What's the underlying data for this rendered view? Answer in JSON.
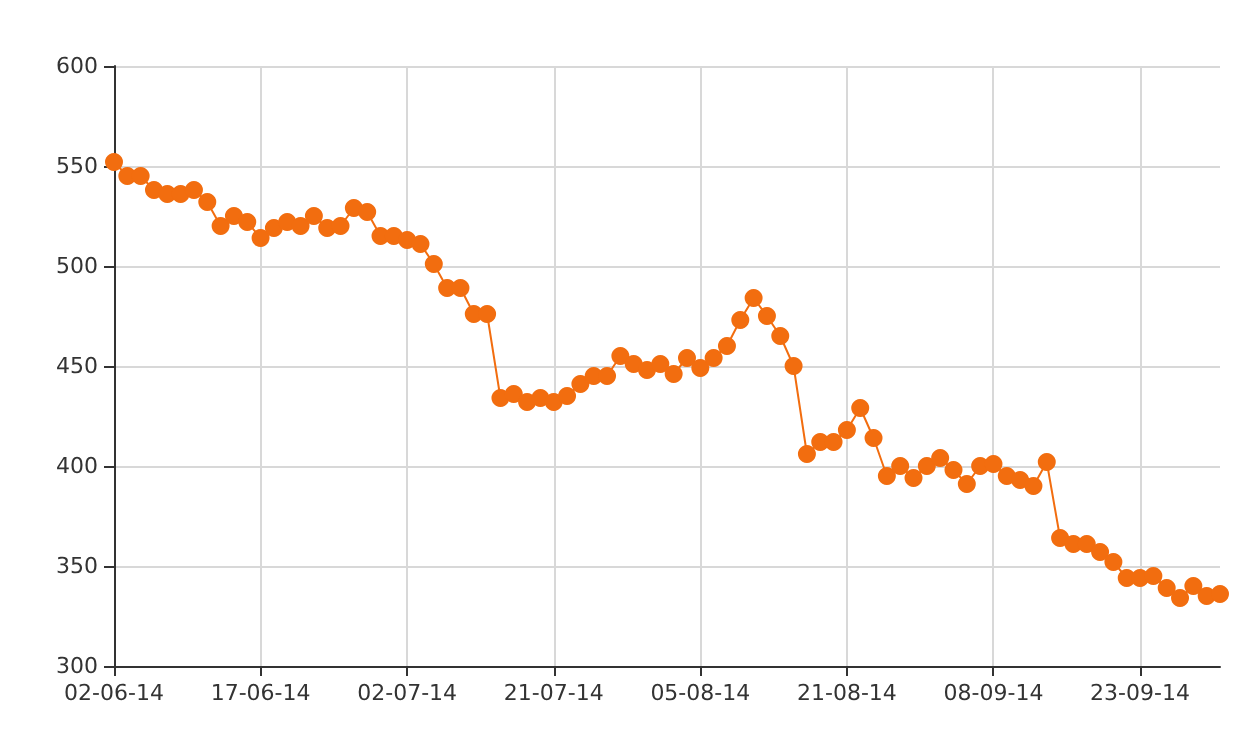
{
  "chart_data": {
    "type": "line",
    "marker": "circle",
    "grid": true,
    "categories": [
      "02-06-14",
      null,
      null,
      null,
      null,
      null,
      null,
      null,
      null,
      null,
      null,
      "17-06-14",
      null,
      null,
      null,
      null,
      null,
      null,
      null,
      null,
      null,
      null,
      "02-07-14",
      null,
      null,
      null,
      null,
      null,
      null,
      null,
      null,
      null,
      null,
      "21-07-14",
      null,
      null,
      null,
      null,
      null,
      null,
      null,
      null,
      null,
      null,
      "05-08-14",
      null,
      null,
      null,
      null,
      null,
      null,
      null,
      null,
      null,
      null,
      "21-08-14",
      null,
      null,
      null,
      null,
      null,
      null,
      null,
      null,
      null,
      null,
      "08-09-14",
      null,
      null,
      null,
      null,
      null,
      null,
      null,
      null,
      null,
      null,
      "23-09-14",
      null,
      null,
      null,
      null,
      null,
      null
    ],
    "series": [
      {
        "color": "#f26d0f",
        "values": [
          552,
          545,
          545,
          538,
          536,
          536,
          538,
          532,
          520,
          525,
          522,
          514,
          519,
          522,
          520,
          525,
          519,
          520,
          529,
          527,
          515,
          515,
          513,
          511,
          501,
          489,
          489,
          476,
          476,
          434,
          436,
          432,
          434,
          432,
          435,
          441,
          445,
          445,
          455,
          451,
          448,
          451,
          446,
          454,
          449,
          454,
          460,
          473,
          484,
          475,
          465,
          450,
          406,
          412,
          412,
          418,
          429,
          414,
          395,
          400,
          394,
          400,
          404,
          398,
          391,
          400,
          401,
          395,
          393,
          390,
          402,
          364,
          361,
          361,
          357,
          352,
          344,
          344,
          345,
          339,
          334,
          340,
          335,
          336
        ]
      }
    ],
    "ylim": [
      300,
      600
    ],
    "yticks": [
      300,
      350,
      400,
      450,
      500,
      550,
      600
    ]
  }
}
